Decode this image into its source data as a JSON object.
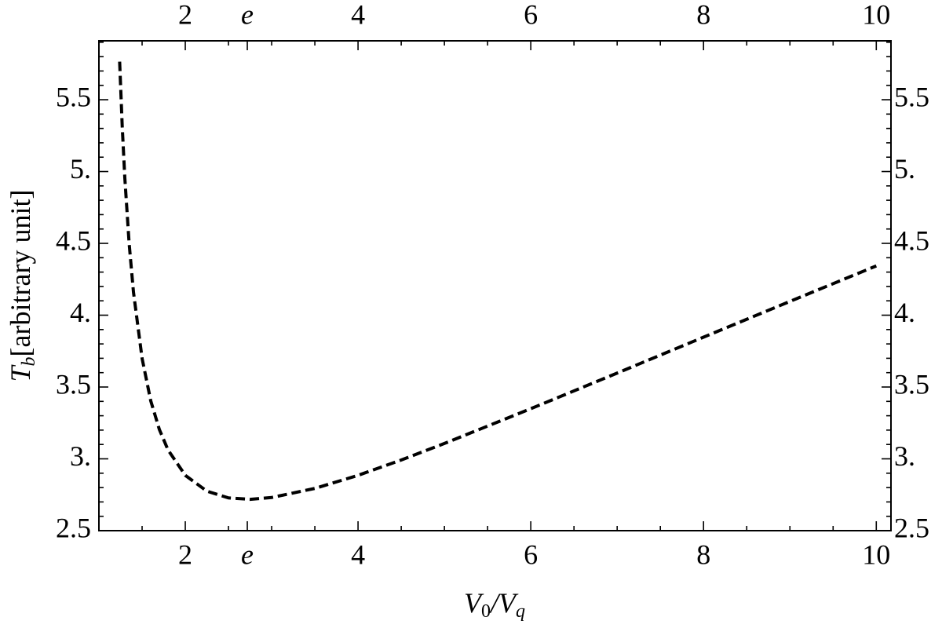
{
  "chart_data": {
    "type": "line",
    "xlabel": {
      "main": "V",
      "sub": "0",
      "mid": "/V",
      "sub2": "q"
    },
    "ylabel": {
      "main": "T",
      "sub": "b",
      "rest": "[arbitrary unit]"
    },
    "x": [
      1.24,
      1.27,
      1.3,
      1.35,
      1.4,
      1.5,
      1.6,
      1.7,
      1.8,
      2.0,
      2.25,
      2.5,
      2.75,
      3.0,
      3.5,
      4,
      4.5,
      5,
      6,
      7,
      8,
      9,
      10
    ],
    "series": [
      {
        "color": "#000000",
        "values": [
          5.765,
          5.313,
          4.955,
          4.499,
          4.161,
          3.699,
          3.404,
          3.204,
          3.062,
          2.885,
          2.775,
          2.728,
          2.718,
          2.731,
          2.794,
          2.885,
          2.992,
          3.107,
          3.349,
          3.597,
          3.847,
          4.096,
          4.343
        ]
      }
    ],
    "xlim": [
      1,
      10.17
    ],
    "ylim": [
      2.5,
      5.91
    ],
    "xticks": [
      2,
      {
        "value": 2.718,
        "label": "e"
      },
      4,
      6,
      8,
      10
    ],
    "yticks": [
      {
        "value": 2.5,
        "label": "2.5"
      },
      {
        "value": 3,
        "label": "3."
      },
      {
        "value": 3.5,
        "label": "3.5"
      },
      {
        "value": 4,
        "label": "4."
      },
      {
        "value": 4.5,
        "label": "4.5"
      },
      {
        "value": 5,
        "label": "5."
      },
      {
        "value": 5.5,
        "label": "5.5"
      }
    ],
    "xminor": [
      1.5,
      2.5,
      3,
      3.5,
      4.5,
      5,
      5.5,
      6.5,
      7,
      7.5,
      8.5,
      9,
      9.5
    ],
    "yminor": [
      2.6,
      2.7,
      2.8,
      2.9,
      3.1,
      3.2,
      3.3,
      3.4,
      3.6,
      3.7,
      3.8,
      3.9,
      4.1,
      4.2,
      4.3,
      4.4,
      4.6,
      4.7,
      4.8,
      4.9,
      5.1,
      5.2,
      5.3,
      5.4,
      5.6,
      5.7,
      5.8,
      5.9
    ],
    "dashed": true
  }
}
